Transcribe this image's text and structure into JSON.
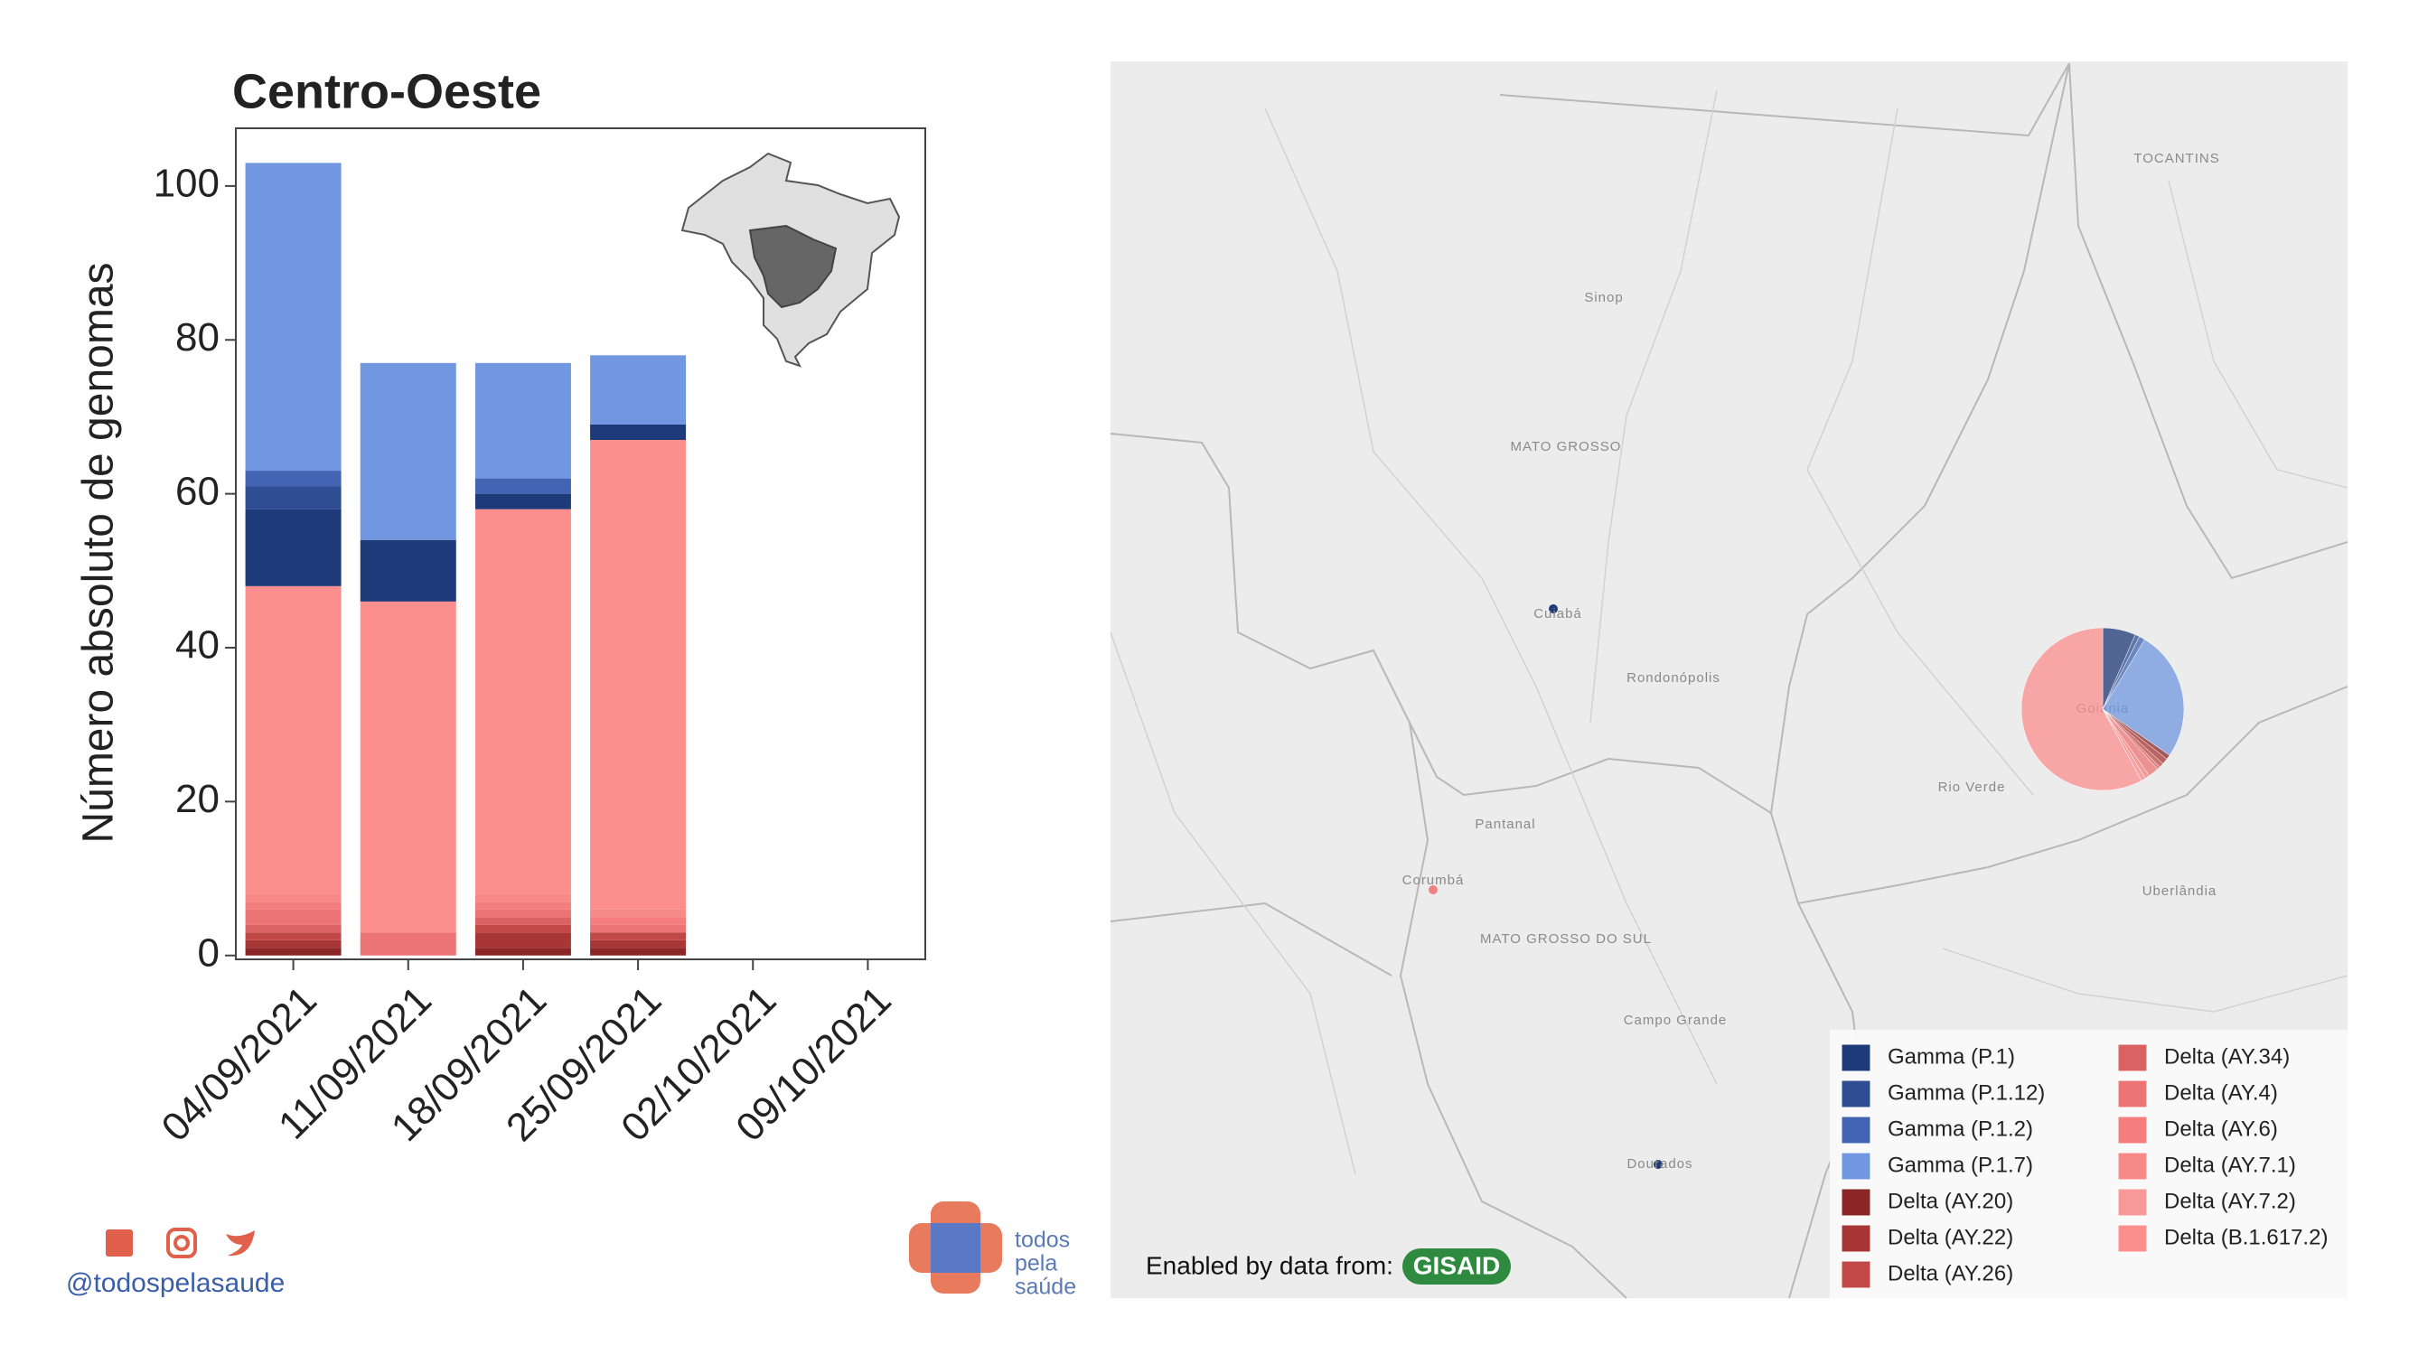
{
  "chart_data": {
    "type": "bar",
    "title": "Centro-Oeste",
    "y_label": "Número absoluto de genomas",
    "categories": [
      "04/09/2021",
      "11/09/2021",
      "18/09/2021",
      "25/09/2021",
      "02/10/2021",
      "09/10/2021"
    ],
    "ylim": [
      -0.5,
      107.5
    ],
    "yticks": [
      0,
      20,
      40,
      60,
      80,
      100
    ],
    "series": [
      {
        "name": "Gamma (P.1)",
        "color": "#1f3a78",
        "values": [
          10,
          8,
          2,
          2,
          0,
          0
        ]
      },
      {
        "name": "Gamma (P.1.12)",
        "color": "#2e4d92",
        "values": [
          3,
          0,
          0,
          0,
          0,
          0
        ]
      },
      {
        "name": "Gamma (P.1.2)",
        "color": "#4264b2",
        "values": [
          2,
          0,
          2,
          0,
          0,
          0
        ]
      },
      {
        "name": "Gamma (P.1.7)",
        "color": "#7097e0",
        "values": [
          40,
          23,
          15,
          9,
          0,
          0
        ]
      },
      {
        "name": "Delta (AY.20)",
        "color": "#8b2626",
        "values": [
          1,
          0,
          1,
          1,
          0,
          0
        ]
      },
      {
        "name": "Delta (AY.22)",
        "color": "#a83636",
        "values": [
          1,
          0,
          2,
          1,
          0,
          0
        ]
      },
      {
        "name": "Delta (AY.26)",
        "color": "#c24848",
        "values": [
          1,
          0,
          1,
          1,
          0,
          0
        ]
      },
      {
        "name": "Delta (AY.34)",
        "color": "#db6262",
        "values": [
          1,
          0,
          1,
          0,
          0,
          0
        ]
      },
      {
        "name": "Delta (AY.4)",
        "color": "#ec7474",
        "values": [
          2,
          3,
          1,
          1,
          0,
          0
        ]
      },
      {
        "name": "Delta (AY.6)",
        "color": "#f47e7e",
        "values": [
          1,
          0,
          1,
          1,
          0,
          0
        ]
      },
      {
        "name": "Delta (AY.7.1)",
        "color": "#f78989",
        "values": [
          1,
          0,
          1,
          1,
          0,
          0
        ]
      },
      {
        "name": "Delta (AY.7.2)",
        "color": "#f99898",
        "values": [
          0,
          0,
          0,
          0,
          0,
          0
        ]
      },
      {
        "name": "Delta (B.1.617.2)",
        "color": "#fc8e8e",
        "values": [
          40,
          43,
          50,
          61,
          0,
          0
        ]
      }
    ]
  },
  "map": {
    "labels": [
      "TOCANTINS",
      "MATO GROSSO",
      "MATO GROSSO DO SUL",
      "Sinop",
      "Cuiabá",
      "Rondonópolis",
      "Pantanal",
      "Corumbá",
      "Campo Grande",
      "Dourados",
      "Rio Verde",
      "Uberlândia",
      "Goiânia"
    ],
    "credit": "Enabled by data from:",
    "credit_logo": "GISAID"
  },
  "footer": {
    "handle": "@todospelasaude",
    "logo": [
      "todos",
      "pela",
      "saúde"
    ]
  }
}
